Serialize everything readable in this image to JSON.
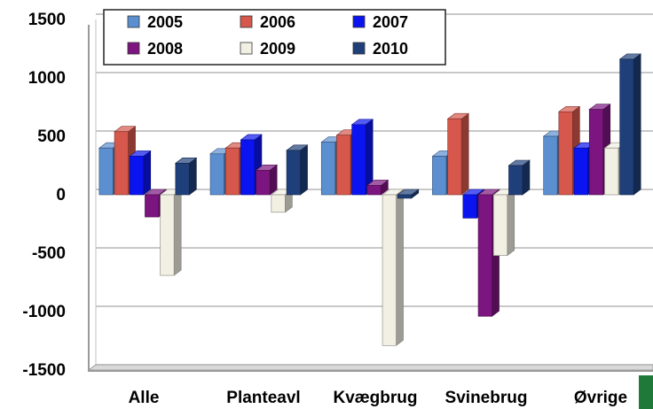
{
  "chart_data": {
    "type": "bar",
    "style": "3d-clustered",
    "categories": [
      "Alle",
      "Planteavl",
      "Kvægbrug",
      "Svinebrug",
      "Øvrige"
    ],
    "series": [
      {
        "name": "2005",
        "color": "#5b8fd0",
        "values": [
          400,
          350,
          450,
          330,
          500
        ]
      },
      {
        "name": "2006",
        "color": "#d6574b",
        "values": [
          540,
          400,
          510,
          650,
          710
        ]
      },
      {
        "name": "2007",
        "color": "#0a14f0",
        "values": [
          330,
          470,
          600,
          -200,
          400
        ]
      },
      {
        "name": "2008",
        "color": "#7d1580",
        "values": [
          -190,
          210,
          80,
          -1040,
          730
        ]
      },
      {
        "name": "2009",
        "color": "#f2f0e3",
        "values": [
          -690,
          -150,
          -1290,
          -520,
          400
        ]
      },
      {
        "name": "2010",
        "color": "#1f3f7a",
        "values": [
          270,
          380,
          -30,
          250,
          1160
        ]
      }
    ],
    "ylim": [
      -1500,
      1500
    ],
    "yticks": [
      1500,
      1000,
      500,
      0,
      -500,
      -1000,
      -1500
    ],
    "ytick_labels": [
      "1500",
      "1000",
      "500",
      "0",
      "-500",
      "-1000",
      "-1500"
    ],
    "grid": true,
    "legend": "top-left"
  }
}
